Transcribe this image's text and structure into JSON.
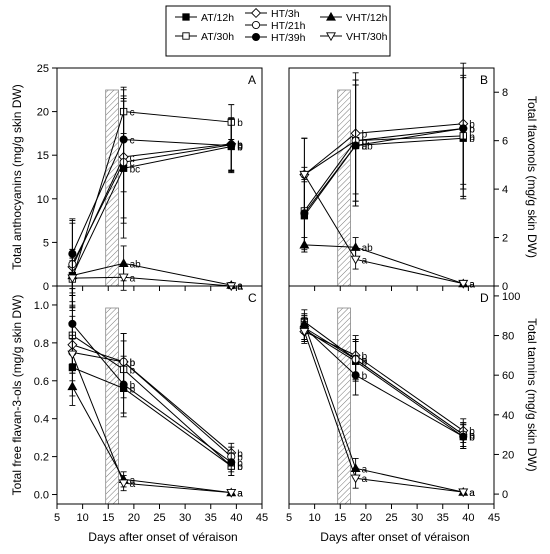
{
  "legend": [
    {
      "name": "AT/12h",
      "marker": "square",
      "fill": "#000000"
    },
    {
      "name": "AT/30h",
      "marker": "square",
      "fill": "#ffffff"
    },
    {
      "name": "HT/3h",
      "marker": "diamond",
      "fill": "#ffffff"
    },
    {
      "name": "HT/21h",
      "marker": "circle",
      "fill": "#ffffff"
    },
    {
      "name": "HT/39h",
      "marker": "circle",
      "fill": "#000000"
    },
    {
      "name": "VHT/12h",
      "marker": "triangle-up",
      "fill": "#000000"
    },
    {
      "name": "VHT/30h",
      "marker": "triangle-down",
      "fill": "#ffffff"
    }
  ],
  "xlabel": "Days after onset of véraison",
  "chart_data": [
    {
      "type": "line",
      "panel": "A",
      "xlim": [
        5,
        45
      ],
      "ylim": [
        0,
        25
      ],
      "ylabel": "Total anthocyanins (mg/g skin DW)",
      "x": [
        8,
        18,
        39
      ],
      "shaded_days": [
        14.5,
        17
      ],
      "series": [
        {
          "name": "AT/12h",
          "values": [
            1.2,
            13.5,
            16.0
          ],
          "err": [
            3,
            8,
            3
          ],
          "letters": [
            "",
            "bc",
            "b"
          ]
        },
        {
          "name": "AT/30h",
          "values": [
            0.8,
            20.0,
            18.8
          ],
          "err": [
            3,
            2.5,
            2
          ],
          "letters": [
            "",
            "c",
            "b"
          ]
        },
        {
          "name": "HT/3h",
          "values": [
            2.2,
            14.8,
            16.3
          ],
          "err": [
            5,
            7,
            3
          ],
          "letters": [
            "",
            "c",
            "b"
          ]
        },
        {
          "name": "HT/21h",
          "values": [
            2.5,
            14.2,
            16.2
          ],
          "err": [
            5,
            7,
            3
          ],
          "letters": [
            "",
            "c",
            "b"
          ]
        },
        {
          "name": "HT/39h",
          "values": [
            3.7,
            16.8,
            16.1
          ],
          "err": [
            4,
            6,
            3
          ],
          "letters": [
            "",
            "c",
            "b"
          ]
        },
        {
          "name": "VHT/12h",
          "values": [
            1.2,
            2.6,
            0.1
          ],
          "err": [
            2,
            2,
            0.3
          ],
          "letters": [
            "",
            "ab",
            "a"
          ]
        },
        {
          "name": "VHT/30h",
          "values": [
            0.9,
            1.0,
            0.0
          ],
          "err": [
            2,
            1.5,
            0.3
          ],
          "letters": [
            "",
            "a",
            "a"
          ]
        }
      ]
    },
    {
      "type": "line",
      "panel": "B",
      "xlim": [
        5,
        45
      ],
      "ylim": [
        0,
        9
      ],
      "ylabel": "Total flavonols (mg/g skin DW)",
      "x": [
        8,
        18,
        39
      ],
      "shaded_days": [
        14.5,
        17
      ],
      "series": [
        {
          "name": "AT/12h",
          "values": [
            2.9,
            5.8,
            6.1
          ],
          "err": [
            1.5,
            2.5,
            2.5
          ],
          "letters": [
            "",
            "b",
            "b"
          ]
        },
        {
          "name": "AT/30h",
          "values": [
            3.1,
            6.0,
            6.2
          ],
          "err": [
            1.5,
            2.5,
            2.5
          ],
          "letters": [
            "",
            "b",
            "b"
          ]
        },
        {
          "name": "HT/3h",
          "values": [
            4.6,
            6.3,
            6.7
          ],
          "err": [
            1.5,
            2.5,
            2.5
          ],
          "letters": [
            "",
            "b",
            "b"
          ]
        },
        {
          "name": "HT/21h",
          "values": [
            4.6,
            6.0,
            6.5
          ],
          "err": [
            1.5,
            2.5,
            2.5
          ],
          "letters": [
            "",
            "b",
            "b"
          ]
        },
        {
          "name": "HT/39h",
          "values": [
            3.0,
            5.8,
            6.5
          ],
          "err": [
            1.5,
            2.5,
            2.5
          ],
          "letters": [
            "",
            "ab",
            "b"
          ]
        },
        {
          "name": "VHT/12h",
          "values": [
            1.7,
            1.6,
            0.1
          ],
          "err": [
            0.3,
            0.4,
            0.1
          ],
          "letters": [
            "",
            "ab",
            "a"
          ]
        },
        {
          "name": "VHT/30h",
          "values": [
            4.6,
            1.1,
            0.1
          ],
          "err": [
            0.3,
            0.4,
            0.1
          ],
          "letters": [
            "",
            "a",
            "a"
          ]
        }
      ]
    },
    {
      "type": "line",
      "panel": "C",
      "xlim": [
        5,
        45
      ],
      "ylim": [
        -0.05,
        1.1
      ],
      "ylabel": "Total free flavan-3-ols (mg/g skin DW)",
      "x": [
        8,
        18,
        39
      ],
      "shaded_days": [
        14.5,
        17
      ],
      "series": [
        {
          "name": "AT/12h",
          "values": [
            0.67,
            0.56,
            0.15
          ],
          "err": [
            0.15,
            0.15,
            0.05
          ],
          "letters": [
            "",
            "b",
            "b"
          ]
        },
        {
          "name": "AT/30h",
          "values": [
            0.84,
            0.66,
            0.15
          ],
          "err": [
            0.15,
            0.15,
            0.05
          ],
          "letters": [
            "",
            "b",
            "b"
          ]
        },
        {
          "name": "HT/3h",
          "values": [
            0.79,
            0.7,
            0.22
          ],
          "err": [
            0.15,
            0.15,
            0.05
          ],
          "letters": [
            "",
            "b",
            "b"
          ]
        },
        {
          "name": "HT/21h",
          "values": [
            0.75,
            0.7,
            0.2
          ],
          "err": [
            0.15,
            0.15,
            0.05
          ],
          "letters": [
            "",
            "b",
            "b"
          ]
        },
        {
          "name": "HT/39h",
          "values": [
            0.9,
            0.58,
            0.17
          ],
          "err": [
            0.15,
            0.15,
            0.05
          ],
          "letters": [
            "",
            "b",
            "b"
          ]
        },
        {
          "name": "VHT/12h",
          "values": [
            0.57,
            0.08,
            0.01
          ],
          "err": [
            0.1,
            0.04,
            0.01
          ],
          "letters": [
            "",
            "a",
            "a"
          ]
        },
        {
          "name": "VHT/30h",
          "values": [
            0.74,
            0.06,
            0.01
          ],
          "err": [
            0.1,
            0.04,
            0.01
          ],
          "letters": [
            "",
            "a",
            "a"
          ]
        }
      ]
    },
    {
      "type": "line",
      "panel": "D",
      "xlim": [
        5,
        45
      ],
      "ylim": [
        -5,
        105
      ],
      "ylabel": "Total tannins (mg/g skin DW)",
      "x": [
        8,
        18,
        39
      ],
      "shaded_days": [
        14.5,
        17
      ],
      "series": [
        {
          "name": "AT/12h",
          "values": [
            83,
            67,
            29
          ],
          "err": [
            6,
            10,
            6
          ],
          "letters": [
            "",
            "b",
            "b"
          ]
        },
        {
          "name": "AT/30h",
          "values": [
            87,
            68,
            30
          ],
          "err": [
            6,
            10,
            6
          ],
          "letters": [
            "",
            "b",
            "b"
          ]
        },
        {
          "name": "HT/3h",
          "values": [
            82,
            70,
            32
          ],
          "err": [
            6,
            10,
            6
          ],
          "letters": [
            "",
            "b",
            "b"
          ]
        },
        {
          "name": "HT/21h",
          "values": [
            84,
            68,
            30
          ],
          "err": [
            6,
            10,
            6
          ],
          "letters": [
            "",
            "b",
            "b"
          ]
        },
        {
          "name": "HT/39h",
          "values": [
            84,
            60,
            29
          ],
          "err": [
            6,
            10,
            6
          ],
          "letters": [
            "",
            "b",
            "b"
          ]
        },
        {
          "name": "VHT/12h",
          "values": [
            86,
            13,
            1
          ],
          "err": [
            5,
            5,
            1
          ],
          "letters": [
            "",
            "a",
            "a"
          ]
        },
        {
          "name": "VHT/30h",
          "values": [
            82,
            8,
            1
          ],
          "err": [
            5,
            5,
            1
          ],
          "letters": [
            "",
            "a",
            "a"
          ]
        }
      ]
    }
  ],
  "axes": {
    "A": {
      "yticks": [
        0,
        5,
        10,
        15,
        20,
        25
      ],
      "tick_side": "left",
      "show_xticklabels": false
    },
    "B": {
      "yticks": [
        0,
        2,
        4,
        6,
        8
      ],
      "tick_side": "right",
      "show_xticklabels": false
    },
    "C": {
      "yticks": [
        0.0,
        0.2,
        0.4,
        0.6,
        0.8,
        1.0
      ],
      "tick_side": "left",
      "show_xticklabels": true
    },
    "D": {
      "yticks": [
        0,
        20,
        40,
        60,
        80,
        100
      ],
      "tick_side": "right",
      "show_xticklabels": true
    }
  },
  "xticks": [
    5,
    10,
    15,
    20,
    25,
    30,
    35,
    40,
    45
  ]
}
